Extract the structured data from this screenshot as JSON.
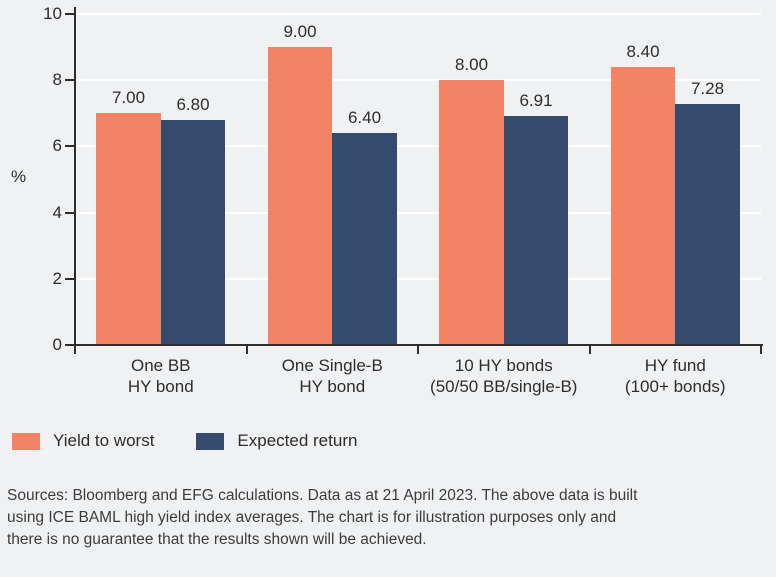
{
  "background_color": "#F0F1F3",
  "chart_data": {
    "type": "bar",
    "ylabel": "%",
    "ylim": [
      0,
      10
    ],
    "yticks": [
      0,
      2,
      4,
      6,
      8,
      10
    ],
    "grid": true,
    "gridline_color": "#FFFFFF",
    "axis_color": "#2E2E2E",
    "text_color": "#2D2D2D",
    "legend_position": "bottom",
    "categories": [
      {
        "line1": "One BB",
        "line2": "HY bond"
      },
      {
        "line1": "One Single-B",
        "line2": "HY bond"
      },
      {
        "line1": "10 HY bonds",
        "line2": "(50/50 BB/single-B)"
      },
      {
        "line1": "HY fund",
        "line2": "(100+ bonds)"
      }
    ],
    "series": [
      {
        "name": "Yield to worst",
        "color": "#F28465",
        "values": [
          7.0,
          9.0,
          8.0,
          8.4
        ],
        "value_labels": [
          "7.00",
          "9.00",
          "8.00",
          "8.40"
        ]
      },
      {
        "name": "Expected return",
        "color": "#344B6D",
        "values": [
          6.8,
          6.4,
          6.91,
          7.28
        ],
        "value_labels": [
          "6.80",
          "6.40",
          "6.91",
          "7.28"
        ]
      }
    ]
  },
  "source_note": {
    "lines": [
      "Sources: Bloomberg and EFG calculations. Data as at 21 April 2023. The above data is built",
      "using ICE BAML high yield index averages. The chart is for illustration purposes only and",
      "there is no guarantee that the results shown will be achieved."
    ]
  }
}
